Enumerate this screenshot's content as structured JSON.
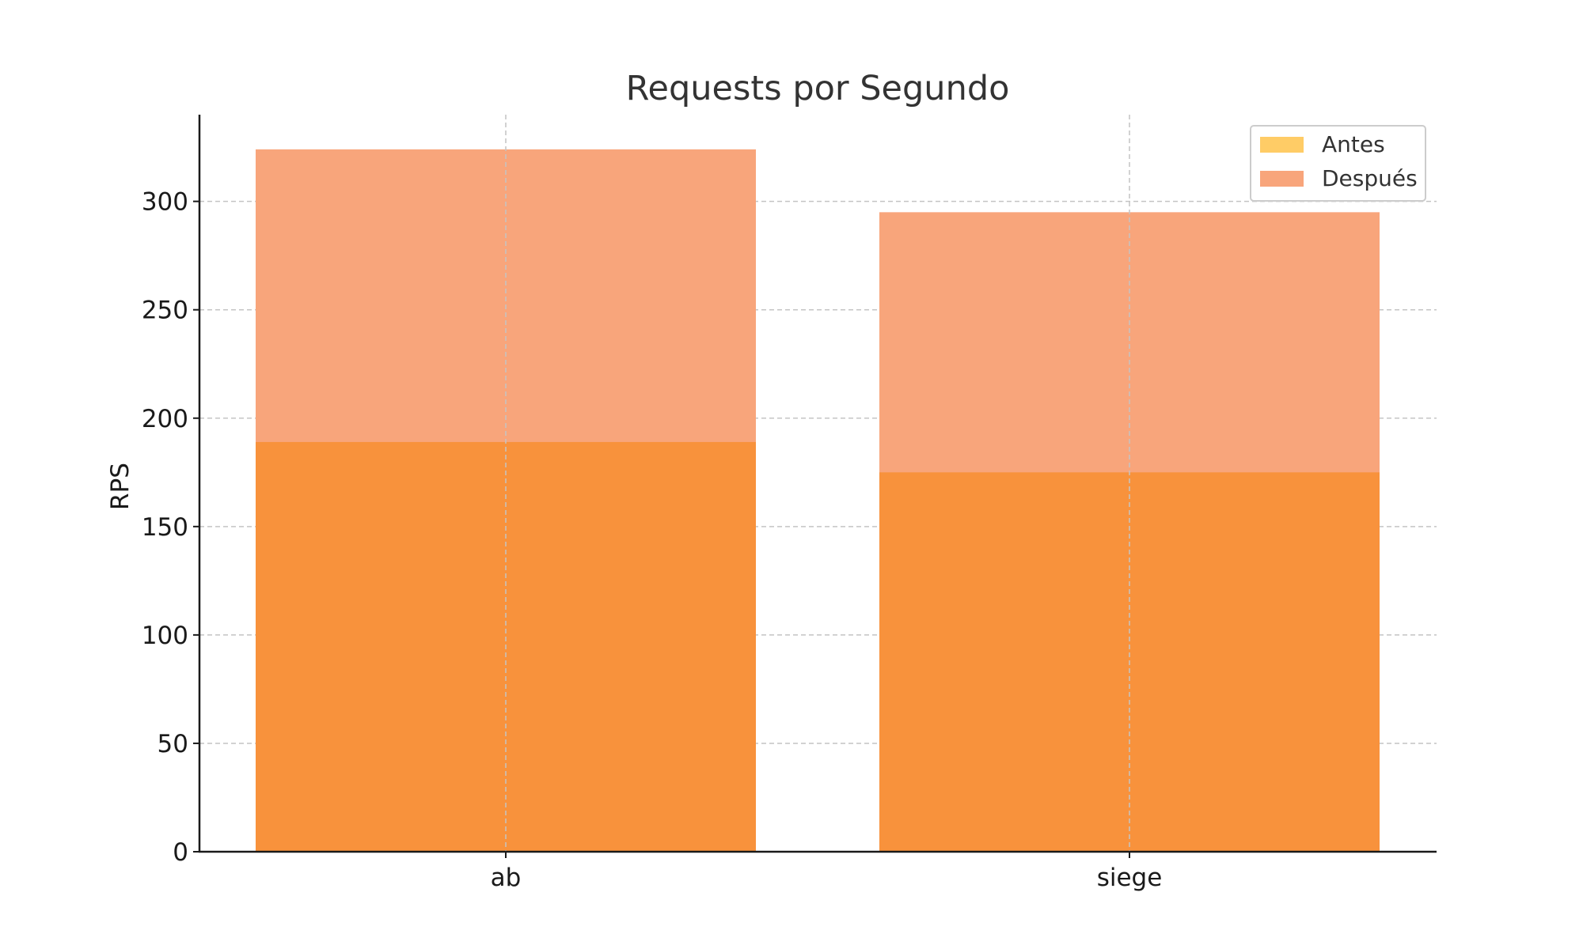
{
  "chart_data": {
    "type": "bar",
    "title": "Requests por Segundo",
    "xlabel": "",
    "ylabel": "RPS",
    "categories": [
      "ab",
      "siege"
    ],
    "series": [
      {
        "name": "Antes",
        "values": [
          189,
          175
        ],
        "color": "#ffcc66"
      },
      {
        "name": "Después",
        "values": [
          324,
          295
        ],
        "color": "#f8a57b"
      }
    ],
    "overlap_color": "#f8923c",
    "ylim": [
      0,
      340
    ],
    "yticks": [
      0,
      50,
      100,
      150,
      200,
      250,
      300
    ],
    "grid": true,
    "legend_position": "top-right"
  }
}
